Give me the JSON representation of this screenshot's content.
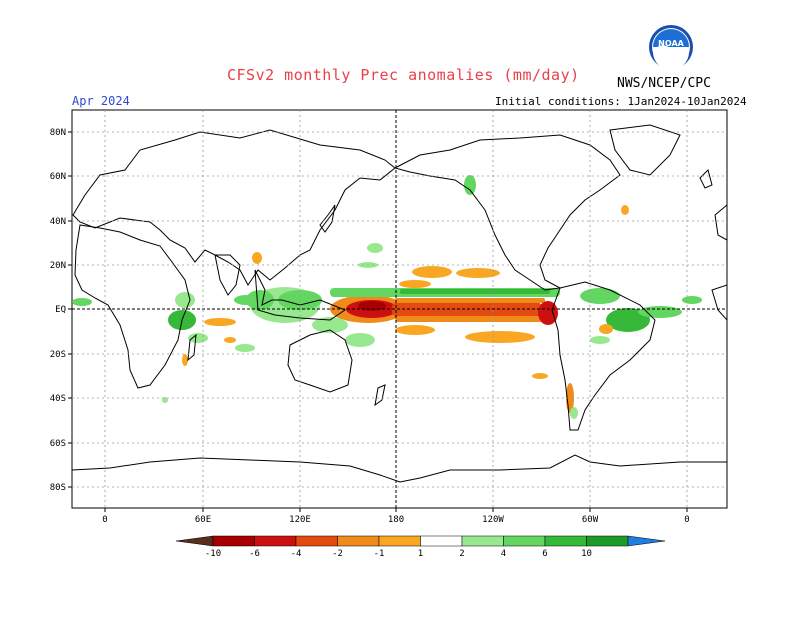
{
  "header": {
    "title": "CFSv2 monthly Prec anomalies (mm/day)",
    "agency": "NWS/NCEP/CPC",
    "valid_month": "Apr 2024",
    "initial_conditions": "Initial conditions: 1Jan2024-10Jan2024",
    "logo_text": "NOAA"
  },
  "map": {
    "lat_labels": [
      "80N",
      "60N",
      "40N",
      "20N",
      "EQ",
      "20S",
      "40S",
      "60S",
      "80S"
    ],
    "lon_labels": [
      "0",
      "60E",
      "120E",
      "180",
      "120W",
      "60W",
      "0"
    ]
  },
  "colorbar": {
    "labels": [
      "-10",
      "-6",
      "-4",
      "-2",
      "-1",
      "1",
      "2",
      "4",
      "6",
      "10"
    ],
    "colors": [
      "#5a2e1e",
      "#a80000",
      "#cc1010",
      "#e24a10",
      "#f08a1a",
      "#f9a623",
      "#ffffff",
      "#98e890",
      "#62d660",
      "#36b838",
      "#1e9a26",
      "#1f7fe0"
    ]
  }
}
